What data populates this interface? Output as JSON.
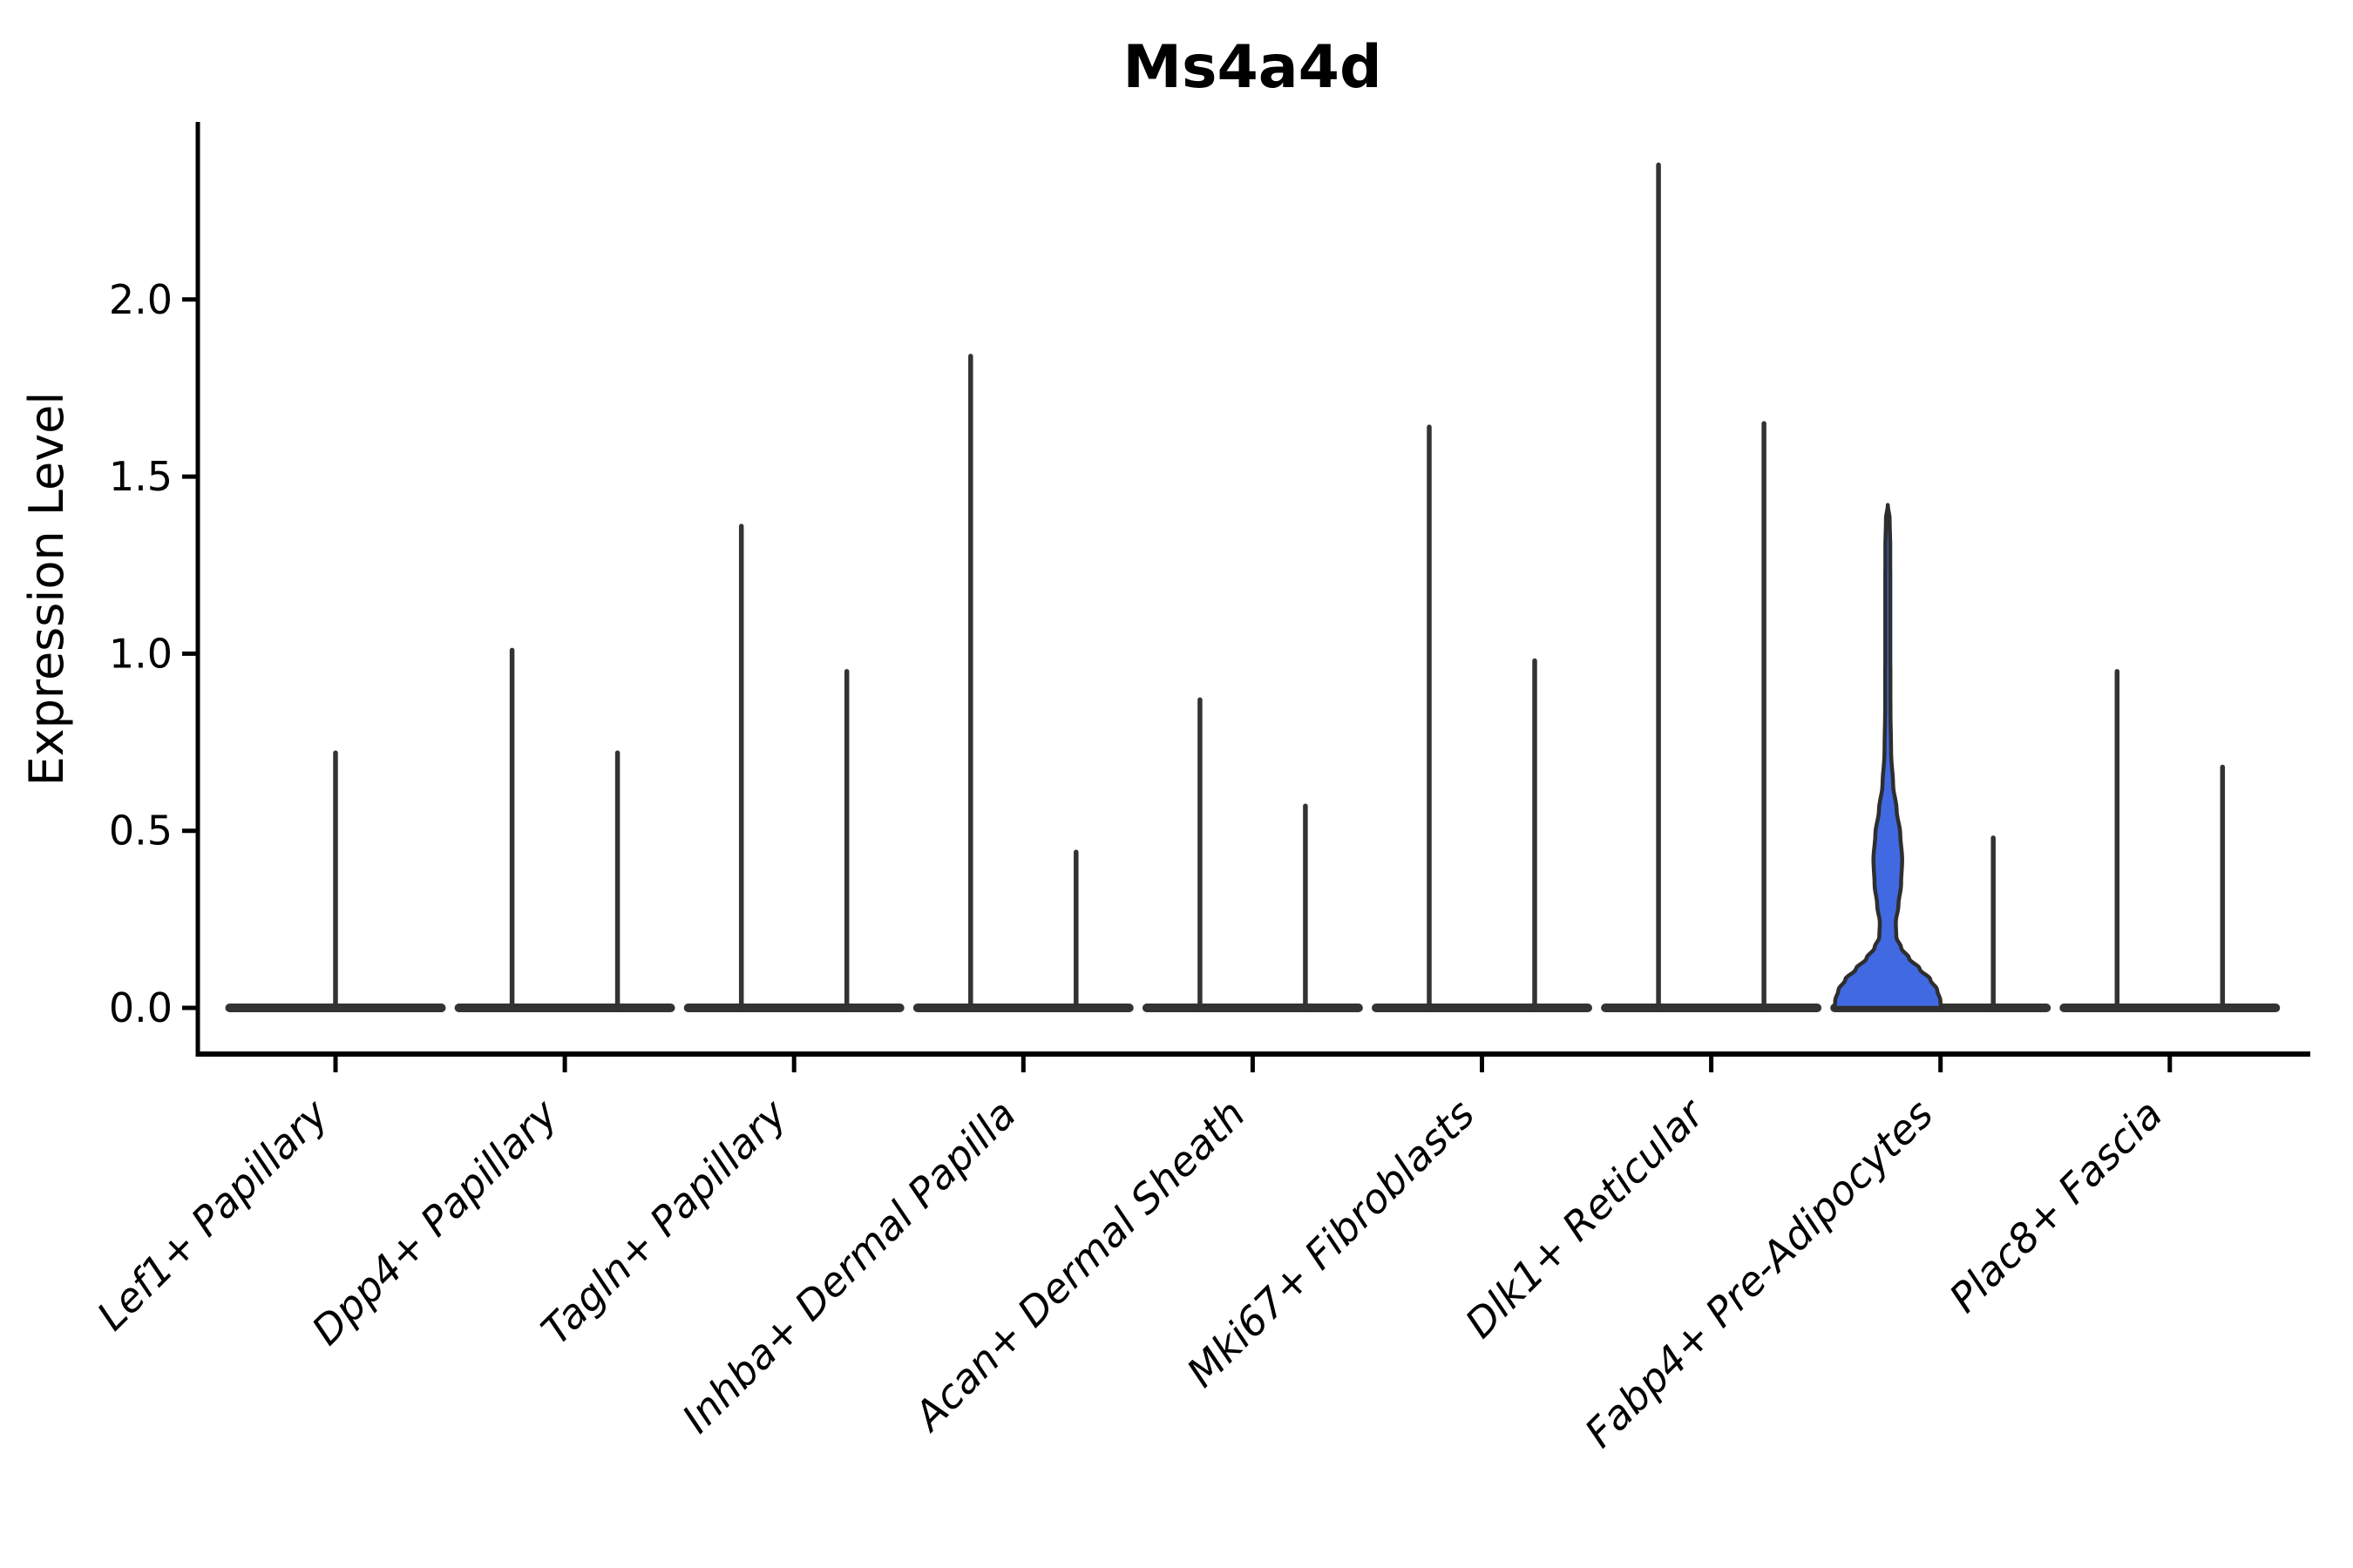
{
  "chart_data": {
    "type": "violin",
    "title": "Ms4a4d",
    "ylabel": "Expression Level",
    "xlabel": "",
    "ylim": [
      -0.13,
      2.51
    ],
    "grid": false,
    "legend": "none",
    "yticks": [
      {
        "value": 0.0,
        "label": "0.0"
      },
      {
        "value": 0.5,
        "label": "0.5"
      },
      {
        "value": 1.0,
        "label": "1.0"
      },
      {
        "value": 1.5,
        "label": "1.5"
      },
      {
        "value": 2.0,
        "label": "2.0"
      }
    ],
    "colors": {
      "violin_line": "#333333",
      "highlight_fill": "#4169e1",
      "violin_outline": "#2e2e2e",
      "axis": "#000000",
      "text": "#000000"
    },
    "categories": [
      {
        "label": "Lef1+ Papillary",
        "violins": [
          {
            "position": "center",
            "max": 0.72,
            "style": "collapsed"
          }
        ]
      },
      {
        "label": "Dpp4+ Papillary",
        "violins": [
          {
            "position": "left",
            "max": 1.01,
            "style": "collapsed"
          },
          {
            "position": "right",
            "max": 0.72,
            "style": "collapsed"
          }
        ]
      },
      {
        "label": "Tagln+ Papillary",
        "violins": [
          {
            "position": "left",
            "max": 1.36,
            "style": "collapsed"
          },
          {
            "position": "right",
            "max": 0.95,
            "style": "collapsed"
          }
        ]
      },
      {
        "label": "Inhba+ Dermal Papilla",
        "violins": [
          {
            "position": "left",
            "max": 1.84,
            "style": "collapsed"
          },
          {
            "position": "right",
            "max": 0.44,
            "style": "collapsed"
          }
        ]
      },
      {
        "label": "Acan+ Dermal Sheath",
        "violins": [
          {
            "position": "left",
            "max": 0.87,
            "style": "collapsed"
          },
          {
            "position": "right",
            "max": 0.57,
            "style": "collapsed"
          }
        ]
      },
      {
        "label": "Mki67+ Fibroblasts",
        "violins": [
          {
            "position": "left",
            "max": 1.64,
            "style": "collapsed"
          },
          {
            "position": "right",
            "max": 0.98,
            "style": "collapsed"
          }
        ]
      },
      {
        "label": "Dlk1+ Reticular",
        "violins": [
          {
            "position": "left",
            "max": 2.38,
            "style": "collapsed"
          },
          {
            "position": "right",
            "max": 1.65,
            "style": "collapsed"
          }
        ]
      },
      {
        "label": "Fabp4+ Pre-Adipocytes",
        "violins": [
          {
            "position": "left",
            "max": 1.42,
            "style": "filled",
            "fill": "#4169e1",
            "profile": [
              [
                0.0,
                1.0
              ],
              [
                0.02,
                0.99
              ],
              [
                0.05,
                0.93
              ],
              [
                0.08,
                0.8
              ],
              [
                0.11,
                0.6
              ],
              [
                0.14,
                0.4
              ],
              [
                0.17,
                0.25
              ],
              [
                0.2,
                0.16
              ],
              [
                0.24,
                0.15
              ],
              [
                0.29,
                0.2
              ],
              [
                0.35,
                0.25
              ],
              [
                0.42,
                0.27
              ],
              [
                0.49,
                0.235
              ],
              [
                0.56,
                0.165
              ],
              [
                0.63,
                0.1
              ],
              [
                0.72,
                0.062
              ],
              [
                0.85,
                0.05
              ],
              [
                1.0,
                0.048
              ],
              [
                1.15,
                0.048
              ],
              [
                1.3,
                0.046
              ],
              [
                1.38,
                0.035
              ],
              [
                1.42,
                0.0
              ]
            ]
          },
          {
            "position": "right",
            "max": 0.48,
            "style": "collapsed"
          }
        ]
      },
      {
        "label": "Plac8+ Fascia",
        "violins": [
          {
            "position": "left",
            "max": 0.95,
            "style": "collapsed"
          },
          {
            "position": "right",
            "max": 0.68,
            "style": "collapsed"
          }
        ]
      }
    ]
  }
}
